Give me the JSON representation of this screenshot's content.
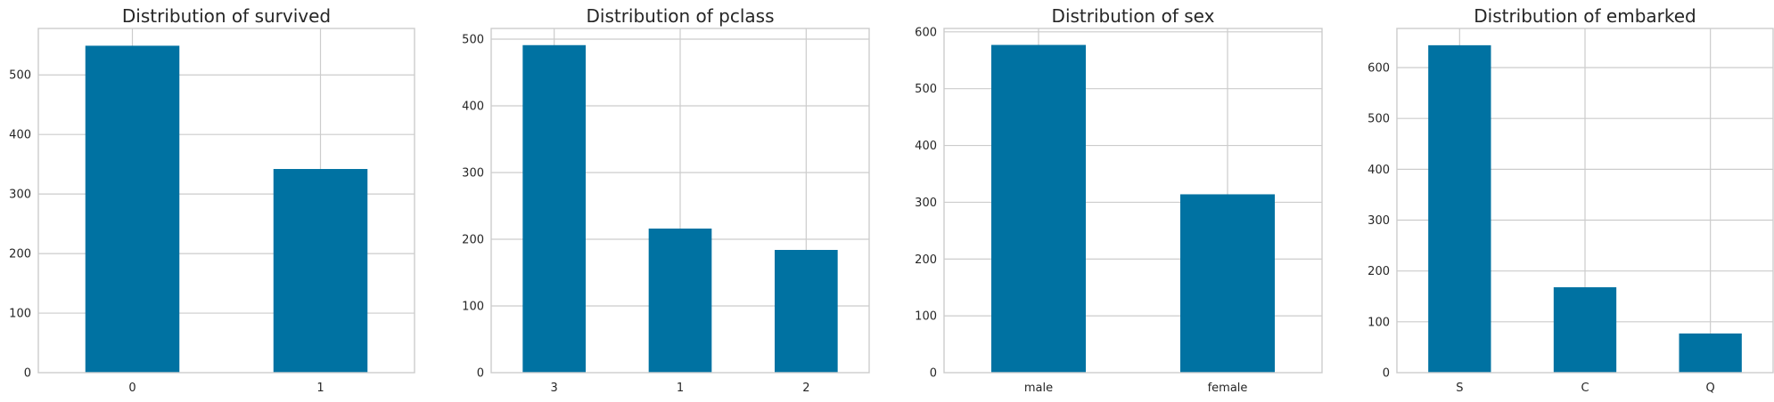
{
  "colors": {
    "bar": "#0072a2",
    "grid": "#cccccc",
    "text": "#262626"
  },
  "chart_data": [
    {
      "type": "bar",
      "title": "Distribution of survived",
      "categories": [
        "0",
        "1"
      ],
      "values": [
        549,
        342
      ],
      "ylim": [
        0,
        578
      ],
      "yticks": [
        0,
        100,
        200,
        300,
        400,
        500
      ],
      "grid": true
    },
    {
      "type": "bar",
      "title": "Distribution of pclass",
      "categories": [
        "3",
        "1",
        "2"
      ],
      "values": [
        491,
        216,
        184
      ],
      "ylim": [
        0,
        516
      ],
      "yticks": [
        0,
        100,
        200,
        300,
        400,
        500
      ],
      "grid": true
    },
    {
      "type": "bar",
      "title": "Distribution of sex",
      "categories": [
        "male",
        "female"
      ],
      "values": [
        577,
        314
      ],
      "ylim": [
        0,
        606
      ],
      "yticks": [
        0,
        100,
        200,
        300,
        400,
        500,
        600
      ],
      "grid": true
    },
    {
      "type": "bar",
      "title": "Distribution of embarked",
      "categories": [
        "S",
        "C",
        "Q"
      ],
      "values": [
        644,
        168,
        77
      ],
      "ylim": [
        0,
        677
      ],
      "yticks": [
        0,
        100,
        200,
        300,
        400,
        500,
        600
      ],
      "grid": true
    }
  ]
}
